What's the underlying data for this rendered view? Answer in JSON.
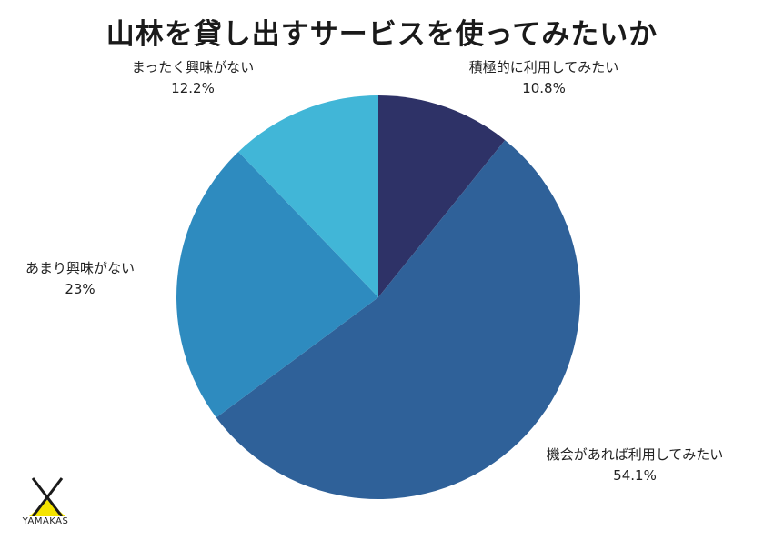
{
  "chart_data": {
    "type": "pie",
    "title": "山林を貸し出すサービスを使ってみたいか",
    "start": "top",
    "direction": "clockwise",
    "slices": [
      {
        "label": "積極的に利用してみたい",
        "value": 10.8,
        "display": "10.8%",
        "color": "#2e3267"
      },
      {
        "label": "機会があれば利用してみたい",
        "value": 54.1,
        "display": "54.1%",
        "color": "#2f6199"
      },
      {
        "label": "あまり興味がない",
        "value": 23.0,
        "display": "23%",
        "color": "#2e8bbf"
      },
      {
        "label": "まったく興味がない",
        "value": 12.2,
        "display": "12.2%",
        "color": "#41b6d7"
      }
    ]
  },
  "logo": {
    "text": "YAMAKAS"
  }
}
